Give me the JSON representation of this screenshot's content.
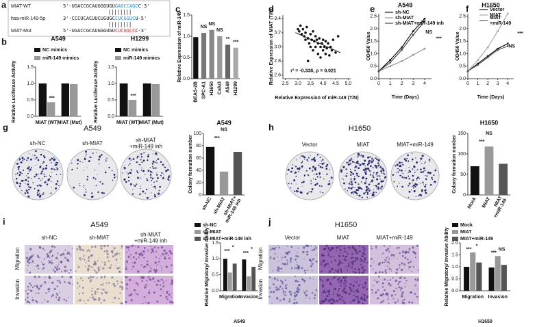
{
  "panel_labels": [
    "a",
    "b",
    "c",
    "d",
    "e",
    "f",
    "g",
    "h",
    "i",
    "j"
  ],
  "sequences": [
    {
      "name": "MIAT-WT",
      "parts": [
        "5'-UGACCGCAUGGGUGU",
        "GAGCCAGC",
        "C-3'"
      ]
    },
    {
      "name": "hsa-miR-149-5p",
      "parts": [
        "3'-CCCUCACUUCUGUGC",
        "CUCGGUC",
        "U-5'"
      ]
    },
    {
      "name": "MIAT-Mut",
      "parts": [
        "5'-UGACCGCAUGGGUGU",
        "CUCGGCC",
        "C-3'"
      ]
    }
  ],
  "colony_g": {
    "title": "A549",
    "labels": [
      "sh-NC",
      "sh-MIAT",
      "sh-MIAT\n+miR-149 inh"
    ]
  },
  "colony_h": {
    "title": "H1650",
    "labels": [
      "Vector",
      "MIAT",
      "MIAT+miR-149"
    ]
  },
  "transwell_i": {
    "title": "A549",
    "labels": [
      "sh-NC",
      "sh-MIAT",
      "sh-MIAT\n+miR-149 inh"
    ],
    "rows": [
      "Migration",
      "Invasion"
    ]
  },
  "transwell_j": {
    "title": "H1650",
    "labels": [
      "Vector",
      "MIAT",
      "MIAT+miR-149"
    ],
    "rows": [
      "Migration",
      "Invasion"
    ]
  },
  "chart_data": [
    {
      "type": "bar",
      "title": "A549",
      "ylabel": "Relative Luciferase Activity",
      "categories": [
        "MIAT (WT)",
        "MIAT (Mut)"
      ],
      "series": [
        {
          "name": "NC mimics",
          "color": "#111111",
          "values": [
            1.0,
            1.0
          ]
        },
        {
          "name": "miR-149 mimics",
          "color": "#999999",
          "values": [
            0.43,
            0.98
          ]
        }
      ],
      "ylim": [
        0,
        1.5
      ],
      "yticks": [
        {
          "value": 0,
          "label": "0.0"
        },
        0.5,
        {
          "value": 1,
          "label": "1.0"
        },
        1.5
      ],
      "annotations": [
        "***"
      ]
    },
    {
      "type": "bar",
      "title": "H1299",
      "ylabel": "Relative Luciferase Activity",
      "categories": [
        "MIAT (WT)",
        "MIAT (Mut)"
      ],
      "series": [
        {
          "name": "NC mimics",
          "color": "#111111",
          "values": [
            1.0,
            1.0
          ]
        },
        {
          "name": "miR-149 mimics",
          "color": "#999999",
          "values": [
            0.5,
            0.98
          ]
        }
      ],
      "ylim": [
        0,
        1.5
      ],
      "yticks": [
        {
          "value": 0,
          "label": "0.0"
        },
        0.5,
        {
          "value": 1,
          "label": "1.0"
        },
        1.5
      ],
      "annotations": [
        "***"
      ]
    },
    {
      "type": "bar",
      "ylabel": "Relative Expression of miR-149",
      "categories": [
        "BEAS-2B",
        "SPC-A1",
        "H1650",
        "Calu3",
        "A549",
        "H1299"
      ],
      "values": [
        0.98,
        1.08,
        1.15,
        1.0,
        0.8,
        0.73
      ],
      "colors": [
        "#111111",
        "#777777",
        "#888888",
        "#999999",
        "#666666",
        "#aaaaaa"
      ],
      "ylim": [
        0,
        1.5
      ],
      "yticks": [
        {
          "value": 0,
          "label": "0.0"
        },
        0.5,
        {
          "value": 1,
          "label": "1.0"
        },
        1.5
      ],
      "annotations": [
        "NS",
        "NS",
        "NS",
        "**",
        "***"
      ]
    },
    {
      "type": "scatter",
      "xlabel": "Relative Expression of miR-149 (T/N)",
      "ylabel": "Relative Expression of MIAT (T/N)",
      "x": [
        3.05,
        3.1,
        3.15,
        3.2,
        3.25,
        3.3,
        3.3,
        3.35,
        3.4,
        3.45,
        3.5,
        3.5,
        3.55,
        3.6,
        3.6,
        3.65,
        3.7,
        3.7,
        3.75,
        3.8,
        3.8,
        3.85,
        3.9,
        3.9,
        3.95,
        4.0,
        4.0,
        4.05,
        4.1,
        4.1,
        4.15,
        4.2,
        4.25,
        4.3,
        4.35,
        4.4,
        4.5,
        3.4,
        3.0,
        4.6
      ],
      "values": [
        3.22,
        3.3,
        3.18,
        3.25,
        3.15,
        3.2,
        3.1,
        3.28,
        3.12,
        3.05,
        3.18,
        3.0,
        3.1,
        3.22,
        2.95,
        3.08,
        3.15,
        3.0,
        3.1,
        3.05,
        2.9,
        3.12,
        3.0,
        2.85,
        3.05,
        3.1,
        2.95,
        3.0,
        2.9,
        3.08,
        2.98,
        3.05,
        2.88,
        3.0,
        2.95,
        3.1,
        2.92,
        2.8,
        3.25,
        3.15
      ],
      "color": "#111111",
      "xlim": [
        2.4,
        5.1
      ],
      "xticks": [
        2.5,
        {
          "value": 3,
          "label": "3.0"
        },
        3.5,
        {
          "value": 4,
          "label": "4.0"
        },
        4.5,
        {
          "value": 5,
          "label": "5.0"
        }
      ],
      "ylim": [
        2.55,
        3.45
      ],
      "yticks": [
        2.6,
        2.8,
        {
          "value": 3,
          "label": "3.0"
        },
        3.2,
        3.4
      ],
      "annotations": [
        "r² = -0.338, ρ = 0.021"
      ]
    },
    {
      "type": "line",
      "title": "A549",
      "xlabel": "Time (Days)",
      "ylabel": "OD450 Value",
      "x": [
        0,
        1,
        2,
        3,
        4
      ],
      "xlim": [
        0,
        4.6
      ],
      "xticks": [
        0,
        1,
        2,
        3,
        4
      ],
      "ylim": [
        0,
        2.6
      ],
      "yticks": [
        {
          "value": 0,
          "label": "0.0"
        },
        0.5,
        {
          "value": 1,
          "label": "1.0"
        },
        1.5,
        {
          "value": 2,
          "label": "2.0"
        },
        2.5
      ],
      "series": [
        {
          "name": "sh-NC",
          "color": "#111111",
          "values": [
            0.3,
            0.75,
            1.25,
            1.9,
            2.4
          ]
        },
        {
          "name": "sh-MIAT",
          "color": "#999999",
          "values": [
            0.3,
            0.5,
            0.7,
            0.95,
            1.2
          ]
        },
        {
          "name": "sh-MIAT+miR-149 inh",
          "color": "#444444",
          "values": [
            0.3,
            0.65,
            1.15,
            1.75,
            2.3
          ]
        }
      ],
      "annotations": [
        "NS",
        "***"
      ]
    },
    {
      "type": "line",
      "title": "H1650",
      "xlabel": "Time (Days)",
      "ylabel": "OD450 Value",
      "x": [
        0,
        1,
        2,
        3,
        4
      ],
      "xlim": [
        0,
        4.6
      ],
      "xticks": [
        0,
        1,
        2,
        3,
        4
      ],
      "ylim": [
        0,
        2.6
      ],
      "yticks": [
        {
          "value": 0,
          "label": "0.0"
        },
        0.5,
        {
          "value": 1,
          "label": "1.0"
        },
        1.5,
        {
          "value": 2,
          "label": "2.0"
        },
        2.5
      ],
      "series": [
        {
          "name": "Vector",
          "color": "#111111",
          "values": [
            0.3,
            0.6,
            0.9,
            1.2,
            1.4
          ]
        },
        {
          "name": "MIAT",
          "color": "#aaaaaa",
          "values": [
            0.3,
            0.75,
            1.25,
            1.9,
            2.6
          ]
        },
        {
          "name": "MIAT\n+miR-149",
          "color": "#555555",
          "values": [
            0.3,
            0.55,
            0.85,
            1.15,
            1.3
          ]
        }
      ],
      "annotations": [
        "NS",
        "***"
      ]
    },
    {
      "type": "bar",
      "title": "A549",
      "ylabel": "Colony formation number",
      "categories": [
        "sh-NC",
        "sh-MIAT",
        "sh-MIAT+\nmiR-149 inh"
      ],
      "values": [
        78,
        38,
        70
      ],
      "colors": [
        "#111111",
        "#999999",
        "#555555"
      ],
      "ylim": [
        0,
        100
      ],
      "yticks": [
        0,
        20,
        40,
        60,
        80,
        100
      ],
      "annotations": [
        "***",
        "NS"
      ]
    },
    {
      "type": "bar",
      "title": "H1650",
      "ylabel": "Colony formation number",
      "categories": [
        "Mock",
        "MIAT",
        "MIAT\n+miR-149"
      ],
      "values": [
        70,
        118,
        76
      ],
      "colors": [
        "#111111",
        "#999999",
        "#555555"
      ],
      "ylim": [
        0,
        150
      ],
      "yticks": [
        0,
        50,
        100,
        150
      ],
      "annotations": [
        "***",
        "NS"
      ]
    },
    {
      "type": "bar",
      "xlabel": "A549",
      "ylabel": "Relative Migratory/ Invasive Ability",
      "categories": [
        "Migration",
        "Invasion"
      ],
      "series": [
        {
          "name": "sh-NC",
          "color": "#111111",
          "values": [
            1.0,
            0.98
          ]
        },
        {
          "name": "sh-MIAT",
          "color": "#999999",
          "values": [
            0.57,
            0.45
          ]
        },
        {
          "name": "sh-MIAT+miR-149 inh",
          "color": "#555555",
          "values": [
            0.85,
            0.75
          ]
        }
      ],
      "ylim": [
        0,
        1.5
      ],
      "yticks": [
        {
          "value": 0,
          "label": "0.0"
        },
        0.5,
        {
          "value": 1,
          "label": "1.0"
        },
        1.5
      ],
      "annotations": [
        "***",
        "*",
        "***",
        "*"
      ]
    },
    {
      "type": "bar",
      "xlabel": "H1650",
      "ylabel": "Relative Migratory/ Invasive Ability",
      "categories": [
        "Migration",
        "Invasion"
      ],
      "series": [
        {
          "name": "Mock",
          "color": "#111111",
          "values": [
            1.0,
            0.97
          ]
        },
        {
          "name": "MIAT",
          "color": "#999999",
          "values": [
            1.6,
            1.45
          ]
        },
        {
          "name": "MIAT+miR-149",
          "color": "#555555",
          "values": [
            1.18,
            1.08
          ]
        }
      ],
      "ylim": [
        0,
        2.0
      ],
      "yticks": [
        {
          "value": 0,
          "label": "0.0"
        },
        0.5,
        {
          "value": 1,
          "label": "1.0"
        },
        1.5,
        {
          "value": 2,
          "label": "2.0"
        }
      ],
      "annotations": [
        "***",
        "*",
        "***",
        "NS"
      ]
    }
  ]
}
